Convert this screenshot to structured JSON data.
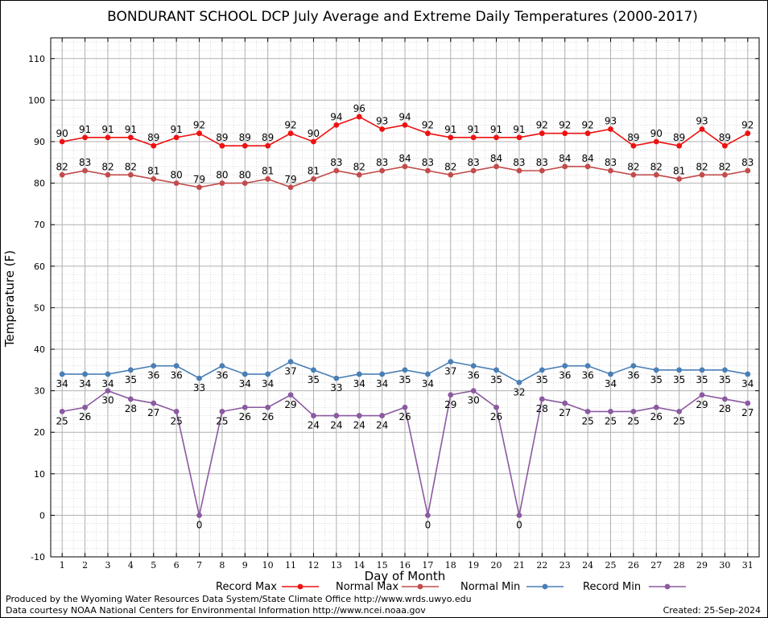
{
  "chart_data": {
    "type": "line",
    "title": "BONDURANT SCHOOL DCP July Average and Extreme Daily Temperatures (2000-2017)",
    "xlabel": "Day of Month",
    "ylabel": "Temperature (F)",
    "ylim": [
      -10,
      115
    ],
    "yticks": [
      -10,
      0,
      10,
      20,
      30,
      40,
      50,
      60,
      70,
      80,
      90,
      100,
      110
    ],
    "x": [
      1,
      2,
      3,
      4,
      5,
      6,
      7,
      8,
      9,
      10,
      11,
      12,
      13,
      14,
      15,
      16,
      17,
      18,
      19,
      20,
      21,
      22,
      23,
      24,
      25,
      26,
      27,
      28,
      29,
      30,
      31
    ],
    "grid": true,
    "legend_position": "bottom",
    "series": [
      {
        "name": "Record Max",
        "color": "#ee1111",
        "label_pos": "above",
        "values": [
          90,
          91,
          91,
          91,
          89,
          91,
          92,
          89,
          89,
          89,
          92,
          90,
          94,
          96,
          93,
          94,
          92,
          91,
          91,
          91,
          91,
          92,
          92,
          92,
          93,
          89,
          90,
          89,
          93,
          89,
          92
        ]
      },
      {
        "name": "Normal Max",
        "color": "#c24b4b",
        "label_pos": "above",
        "values": [
          82,
          83,
          82,
          82,
          81,
          80,
          79,
          80,
          80,
          81,
          79,
          81,
          83,
          82,
          83,
          84,
          83,
          82,
          83,
          84,
          83,
          83,
          84,
          84,
          83,
          82,
          82,
          81,
          82,
          82,
          83
        ]
      },
      {
        "name": "Normal Min",
        "color": "#4a7fb5",
        "label_pos": "below",
        "values": [
          34,
          34,
          34,
          35,
          36,
          36,
          33,
          36,
          34,
          34,
          37,
          35,
          33,
          34,
          34,
          35,
          34,
          37,
          36,
          35,
          32,
          35,
          36,
          36,
          34,
          36,
          35,
          35,
          35,
          35,
          34
        ]
      },
      {
        "name": "Record Min",
        "color": "#8b5aa0",
        "label_pos": "below",
        "values": [
          25,
          26,
          30,
          28,
          27,
          25,
          0,
          25,
          26,
          26,
          29,
          24,
          24,
          24,
          24,
          26,
          0,
          29,
          30,
          26,
          0,
          28,
          27,
          25,
          25,
          25,
          26,
          25,
          29,
          28,
          27
        ]
      }
    ]
  },
  "footer": {
    "produced_by": "Produced by the Wyoming Water Resources Data System/State Climate Office http://www.wrds.uwyo.edu",
    "data_courtesy": "Data courtesy NOAA National Centers for Environmental Information http://www.ncei.noaa.gov",
    "created": "Created:  25-Sep-2024"
  }
}
